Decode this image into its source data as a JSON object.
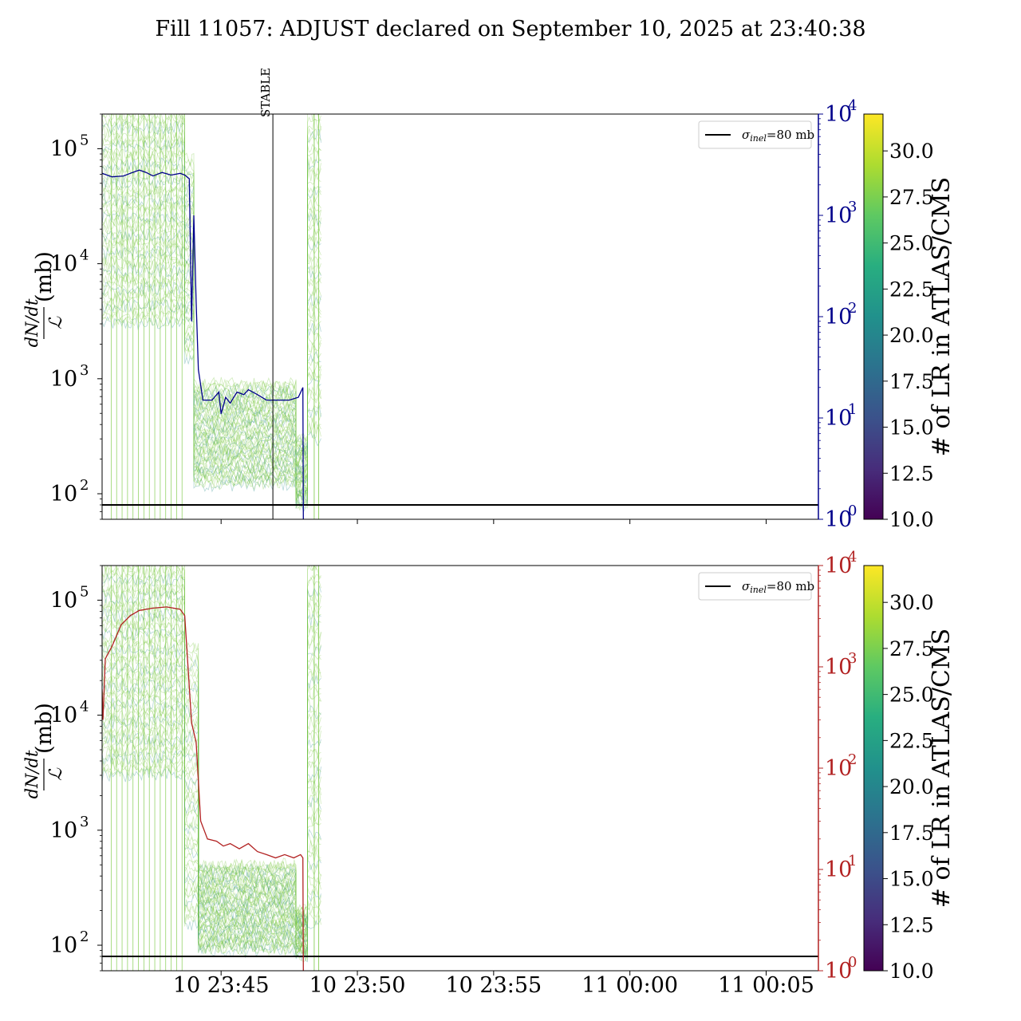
{
  "figure": {
    "title": "Fill 11057: ADJUST declared on September 10, 2025 at 23:40:38"
  },
  "colors": {
    "axis": "#000000",
    "band_green": "#7ac943",
    "band_teal": "#2a8f8c",
    "line_top_right": "#00008b",
    "line_bottom_right": "#b22222",
    "sigma_line": "#000000"
  },
  "chart_data": [
    {
      "type": "line",
      "panel": "top",
      "ylabel_left": "dN/dt / ℒ (mb)",
      "y_left_scale": "log",
      "y_left_lim": [
        60,
        200000
      ],
      "y_left_ticks": [
        {
          "label": "10",
          "exp": "2",
          "v": 100
        },
        {
          "label": "10",
          "exp": "3",
          "v": 1000
        },
        {
          "label": "10",
          "exp": "4",
          "v": 10000
        },
        {
          "label": "10",
          "exp": "5",
          "v": 100000
        }
      ],
      "y_right_scale": "log",
      "y_right_lim": [
        1,
        10000
      ],
      "y_right_ticks": [
        {
          "label": "10",
          "exp": "0",
          "v": 1
        },
        {
          "label": "10",
          "exp": "1",
          "v": 10
        },
        {
          "label": "10",
          "exp": "2",
          "v": 100
        },
        {
          "label": "10",
          "exp": "3",
          "v": 1000
        },
        {
          "label": "10",
          "exp": "4",
          "v": 10000
        }
      ],
      "x_lim": [
        "2025-09-10 23:40:38",
        "2025-09-11 00:06:55"
      ],
      "x_tick_labels": [],
      "legend": {
        "label": "σ_inel=80 mb",
        "sym": "σ",
        "sub": "inel",
        "rest": "=80 mb",
        "placement": "upper right"
      },
      "sigma_inel_mb": 80,
      "vertical_marker": {
        "label": "STABLE",
        "time": "2025-09-10 23:46:54"
      },
      "right_series": [
        [
          "23:40:38",
          2600
        ],
        [
          "23:41:00",
          2400
        ],
        [
          "23:41:25",
          2450
        ],
        [
          "23:41:45",
          2650
        ],
        [
          "23:42:00",
          2800
        ],
        [
          "23:42:15",
          2650
        ],
        [
          "23:42:30",
          2450
        ],
        [
          "23:42:50",
          2650
        ],
        [
          "23:43:10",
          2500
        ],
        [
          "23:43:30",
          2600
        ],
        [
          "23:43:40",
          2500
        ],
        [
          "23:43:50",
          2300
        ],
        [
          "23:43:55",
          90
        ],
        [
          "23:44:00",
          1000
        ],
        [
          "23:44:05",
          140
        ],
        [
          "23:44:10",
          30
        ],
        [
          "23:44:20",
          15
        ],
        [
          "23:44:40",
          15
        ],
        [
          "23:44:55",
          18
        ],
        [
          "23:45:00",
          11
        ],
        [
          "23:45:10",
          16
        ],
        [
          "23:45:20",
          14
        ],
        [
          "23:45:35",
          18
        ],
        [
          "23:45:50",
          17
        ],
        [
          "23:46:00",
          19
        ],
        [
          "23:46:20",
          17
        ],
        [
          "23:46:40",
          15
        ],
        [
          "23:47:00",
          15
        ],
        [
          "23:47:30",
          15
        ],
        [
          "23:47:50",
          16
        ],
        [
          "23:48:00",
          20
        ],
        [
          "23:48:01",
          1
        ]
      ],
      "band_segments": [
        {
          "from": "23:40:38",
          "to": "23:43:40",
          "lo": 3000,
          "hi": 200000
        },
        {
          "from": "23:43:40",
          "to": "23:44:00",
          "lo": 1500,
          "hi": 80000
        },
        {
          "from": "23:44:00",
          "to": "23:47:45",
          "lo": 120,
          "hi": 900
        },
        {
          "from": "23:47:45",
          "to": "23:48:10",
          "lo": 80,
          "hi": 300
        },
        {
          "from": "23:48:10",
          "to": "23:48:40",
          "lo": 300,
          "hi": 200000
        }
      ]
    },
    {
      "type": "line",
      "panel": "bottom",
      "ylabel_left": "dN/dt / ℒ (mb)",
      "y_left_scale": "log",
      "y_left_lim": [
        60,
        200000
      ],
      "y_left_ticks": [
        {
          "label": "10",
          "exp": "2",
          "v": 100
        },
        {
          "label": "10",
          "exp": "3",
          "v": 1000
        },
        {
          "label": "10",
          "exp": "4",
          "v": 10000
        },
        {
          "label": "10",
          "exp": "5",
          "v": 100000
        }
      ],
      "y_right_scale": "log",
      "y_right_lim": [
        1,
        10000
      ],
      "y_right_ticks": [
        {
          "label": "10",
          "exp": "0",
          "v": 1
        },
        {
          "label": "10",
          "exp": "1",
          "v": 10
        },
        {
          "label": "10",
          "exp": "2",
          "v": 100
        },
        {
          "label": "10",
          "exp": "3",
          "v": 1000
        },
        {
          "label": "10",
          "exp": "4",
          "v": 10000
        }
      ],
      "x_lim": [
        "2025-09-10 23:40:38",
        "2025-09-11 00:06:55"
      ],
      "x_tick_labels": [
        {
          "label": "10 23:45",
          "time": "23:45:00"
        },
        {
          "label": "10 23:50",
          "time": "23:50:00"
        },
        {
          "label": "10 23:55",
          "time": "23:55:00"
        },
        {
          "label": "11 00:00",
          "time": "00:00:00"
        },
        {
          "label": "11 00:05",
          "time": "00:05:00"
        }
      ],
      "legend": {
        "label": "σ_inel=80 mb",
        "sym": "σ",
        "sub": "inel",
        "rest": "=80 mb",
        "placement": "upper right"
      },
      "sigma_inel_mb": 80,
      "right_series": [
        [
          "23:40:38",
          600
        ],
        [
          "23:40:40",
          300
        ],
        [
          "23:40:45",
          1200
        ],
        [
          "23:41:00",
          1600
        ],
        [
          "23:41:20",
          2600
        ],
        [
          "23:41:40",
          3200
        ],
        [
          "23:42:00",
          3600
        ],
        [
          "23:42:30",
          3800
        ],
        [
          "23:43:00",
          3900
        ],
        [
          "23:43:30",
          3700
        ],
        [
          "23:43:40",
          3200
        ],
        [
          "23:43:55",
          280
        ],
        [
          "23:44:05",
          180
        ],
        [
          "23:44:10",
          75
        ],
        [
          "23:44:15",
          30
        ],
        [
          "23:44:30",
          20
        ],
        [
          "23:44:50",
          19
        ],
        [
          "23:45:05",
          17
        ],
        [
          "23:45:20",
          18
        ],
        [
          "23:45:40",
          16
        ],
        [
          "23:46:00",
          18
        ],
        [
          "23:46:20",
          15
        ],
        [
          "23:46:40",
          14
        ],
        [
          "23:47:00",
          13
        ],
        [
          "23:47:20",
          14
        ],
        [
          "23:47:40",
          13
        ],
        [
          "23:47:55",
          14
        ],
        [
          "23:48:00",
          13
        ],
        [
          "23:48:01",
          1
        ]
      ],
      "band_segments": [
        {
          "from": "23:40:38",
          "to": "23:43:40",
          "lo": 3000,
          "hi": 200000
        },
        {
          "from": "23:43:40",
          "to": "23:44:10",
          "lo": 150,
          "hi": 40000
        },
        {
          "from": "23:44:10",
          "to": "23:47:45",
          "lo": 90,
          "hi": 500
        },
        {
          "from": "23:47:45",
          "to": "23:48:10",
          "lo": 80,
          "hi": 200
        },
        {
          "from": "23:48:10",
          "to": "23:48:40",
          "lo": 150,
          "hi": 200000
        }
      ]
    }
  ],
  "colorbars": [
    {
      "label": "# of LR in ATLAS/CMS",
      "ticks": [
        "10.0",
        "12.5",
        "15.0",
        "17.5",
        "20.0",
        "22.5",
        "25.0",
        "27.5",
        "30.0"
      ],
      "range": [
        10.0,
        32.0
      ]
    },
    {
      "label": "# of LR in ATLAS/CMS",
      "ticks": [
        "10.0",
        "12.5",
        "15.0",
        "17.5",
        "20.0",
        "22.5",
        "25.0",
        "27.5",
        "30.0"
      ],
      "range": [
        10.0,
        32.0
      ]
    }
  ]
}
